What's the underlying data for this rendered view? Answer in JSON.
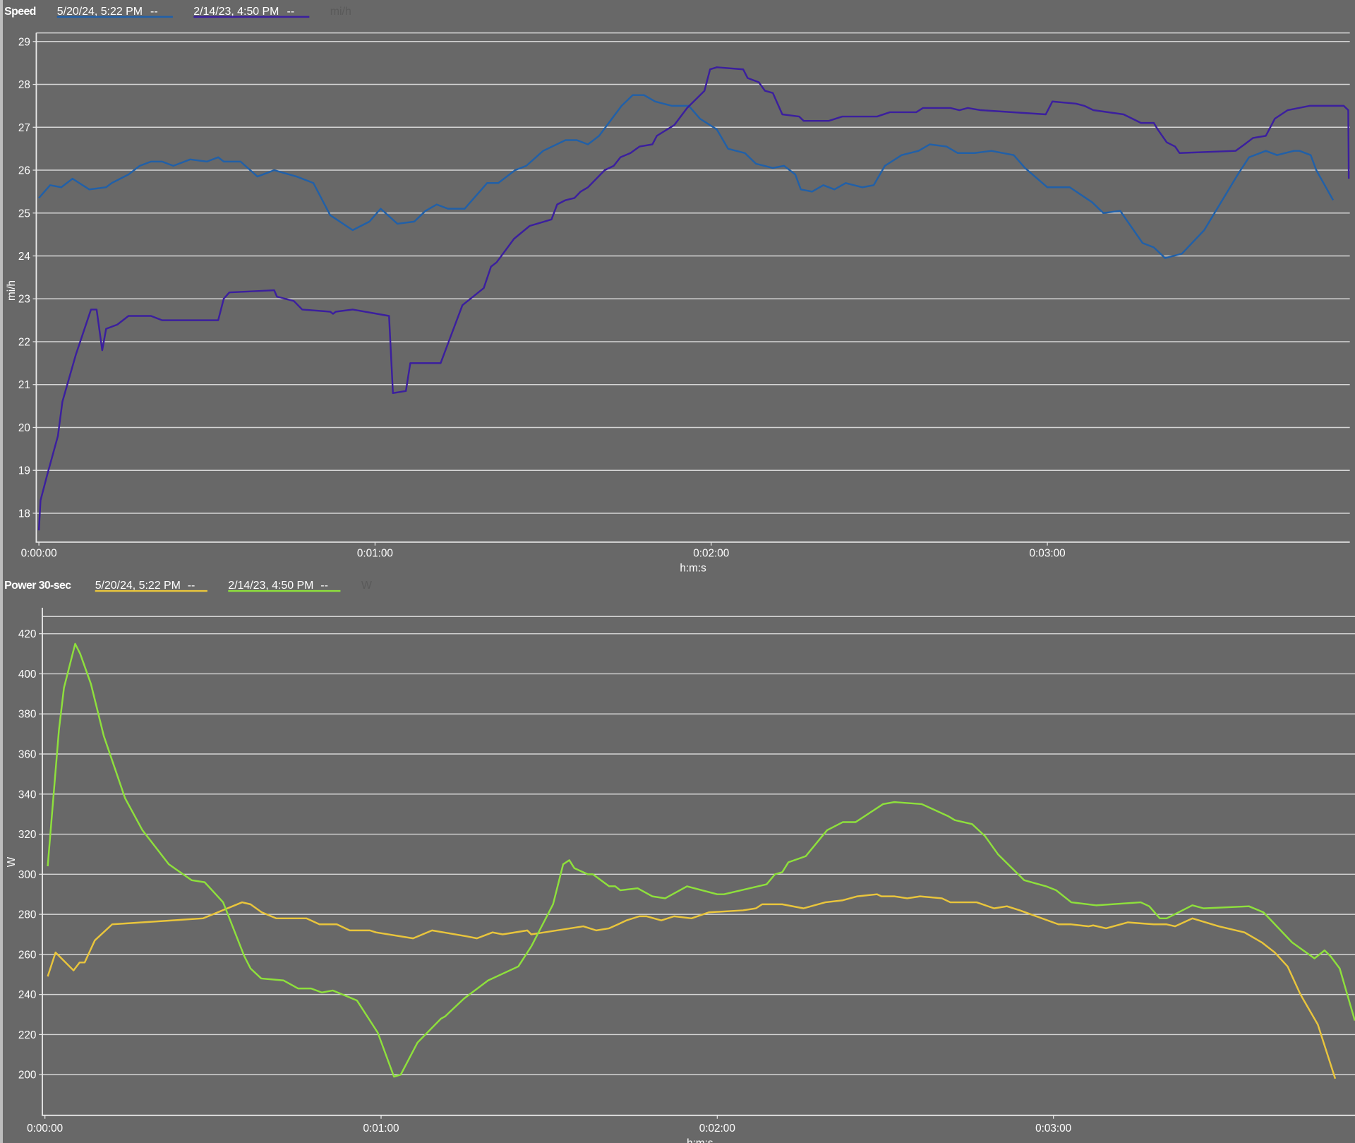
{
  "chart_data": [
    {
      "type": "line",
      "title": "Speed",
      "unit_label": "mi/h",
      "xlabel": "h:m:s",
      "ylabel": "mi/h",
      "xlim_seconds": [
        0,
        234
      ],
      "ylim": [
        17.33,
        29.2
      ],
      "grid": true,
      "legend_position": "top-left",
      "yticks": [
        "18",
        "19",
        "20",
        "21",
        "22",
        "23",
        "24",
        "25",
        "26",
        "27",
        "28",
        "29"
      ],
      "xticks": [
        {
          "t": 0,
          "label": "0:00:00"
        },
        {
          "t": 60,
          "label": "0:01:00"
        },
        {
          "t": 120,
          "label": "0:02:00"
        },
        {
          "t": 180,
          "label": "0:03:00"
        }
      ],
      "series": [
        {
          "name": "5/20/24, 5:22 PM",
          "legend_value": "--",
          "color": "#2160a8",
          "t": [
            0,
            2,
            4,
            6,
            9,
            12,
            13,
            16,
            18,
            20,
            22,
            24,
            27,
            30,
            32,
            33,
            36,
            39,
            42,
            46,
            49,
            52,
            56,
            59,
            61,
            64,
            67,
            69,
            71,
            73,
            76,
            77,
            80,
            82,
            85,
            87,
            90,
            94,
            96,
            98,
            100,
            104,
            106,
            108,
            110,
            113,
            116,
            118,
            121,
            123,
            126,
            128,
            131,
            133,
            135,
            136,
            138,
            140,
            142,
            144,
            147,
            149,
            151,
            154,
            157,
            159,
            162,
            164,
            167,
            170,
            174,
            176,
            180,
            184,
            188,
            190,
            193,
            197,
            199,
            201,
            204,
            208,
            214,
            216,
            219,
            221,
            224,
            225,
            227,
            228,
            231
          ],
          "y": [
            25.35,
            25.65,
            25.6,
            25.8,
            25.55,
            25.6,
            25.7,
            25.9,
            26.1,
            26.2,
            26.2,
            26.1,
            26.25,
            26.2,
            26.3,
            26.2,
            26.2,
            25.85,
            26.0,
            25.85,
            25.7,
            24.95,
            24.6,
            24.8,
            25.1,
            24.75,
            24.8,
            25.05,
            25.2,
            25.1,
            25.1,
            25.25,
            25.7,
            25.7,
            26.0,
            26.1,
            26.45,
            26.7,
            26.7,
            26.6,
            26.8,
            27.5,
            27.75,
            27.75,
            27.6,
            27.5,
            27.5,
            27.2,
            26.95,
            26.5,
            26.4,
            26.15,
            26.05,
            26.1,
            25.9,
            25.55,
            25.5,
            25.65,
            25.55,
            25.7,
            25.6,
            25.65,
            26.1,
            26.35,
            26.45,
            26.6,
            26.55,
            26.4,
            26.4,
            26.45,
            26.35,
            26.05,
            25.6,
            25.6,
            25.25,
            25.0,
            25.05,
            24.3,
            24.2,
            23.95,
            24.05,
            24.6,
            25.9,
            26.3,
            26.45,
            26.35,
            26.45,
            26.45,
            26.35,
            26.0,
            25.3
          ]
        },
        {
          "name": "2/14/23, 4:50 PM",
          "legend_value": "--",
          "color": "#3b1f9e",
          "t": [
            0,
            0.3,
            1.5,
            3.4,
            4.2,
            6.6,
            9.3,
            10.3,
            11.3,
            12,
            14,
            16,
            20,
            22,
            32,
            33,
            34,
            42,
            42.5,
            45.5,
            47,
            52,
            52.5,
            53,
            56,
            62.5,
            63.2,
            65.5,
            66.3,
            71.7,
            75.6,
            79.4,
            80.7,
            81.7,
            84.8,
            87.6,
            91.5,
            92.5,
            94,
            95.6,
            96.7,
            98,
            101,
            102.6,
            103.8,
            105.6,
            107.2,
            109.5,
            110.3,
            113.4,
            115.7,
            118.8,
            119.8,
            121,
            125.7,
            126.5,
            128.5,
            129.6,
            131,
            132.7,
            135.7,
            136.5,
            141,
            143.4,
            149.6,
            151.9,
            156.6,
            157.8,
            162.7,
            164.3,
            165.8,
            168.1,
            179.7,
            180.9,
            185.1,
            186.6,
            188.2,
            193.6,
            196.7,
            199,
            199.7,
            201.3,
            202.8,
            203.6,
            213.6,
            215.2,
            216.7,
            219,
            220.6,
            222.9,
            226.8,
            232.9,
            233.7,
            233.8
          ],
          "y": [
            17.6,
            18.3,
            18.9,
            19.8,
            20.6,
            21.7,
            22.75,
            22.75,
            21.8,
            22.3,
            22.4,
            22.6,
            22.6,
            22.5,
            22.5,
            23.0,
            23.15,
            23.2,
            23.05,
            22.95,
            22.75,
            22.7,
            22.65,
            22.7,
            22.75,
            22.6,
            20.8,
            20.85,
            21.5,
            21.5,
            22.85,
            23.25,
            23.75,
            23.85,
            24.4,
            24.7,
            24.85,
            25.2,
            25.3,
            25.35,
            25.5,
            25.6,
            26.0,
            26.1,
            26.3,
            26.4,
            26.55,
            26.6,
            26.8,
            27.05,
            27.45,
            27.85,
            28.35,
            28.4,
            28.35,
            28.15,
            28.05,
            27.85,
            27.8,
            27.3,
            27.25,
            27.15,
            27.15,
            27.25,
            27.25,
            27.35,
            27.35,
            27.45,
            27.45,
            27.4,
            27.45,
            27.4,
            27.3,
            27.6,
            27.55,
            27.5,
            27.4,
            27.3,
            27.1,
            27.1,
            26.95,
            26.65,
            26.55,
            26.4,
            26.45,
            26.6,
            26.75,
            26.8,
            27.2,
            27.4,
            27.5,
            27.5,
            27.4,
            25.8
          ]
        }
      ]
    },
    {
      "type": "line",
      "title": "Power 30-sec",
      "unit_label": "W",
      "xlabel": "h:m:s",
      "ylabel": "W",
      "xlim_seconds": [
        0,
        233.8
      ],
      "ylim": [
        180,
        428.6
      ],
      "grid": true,
      "legend_position": "top-left",
      "yticks": [
        "200",
        "220",
        "240",
        "260",
        "280",
        "300",
        "320",
        "340",
        "360",
        "380",
        "400",
        "420"
      ],
      "xticks": [
        {
          "t": 0,
          "label": "0:00:00"
        },
        {
          "t": 60,
          "label": "0:01:00"
        },
        {
          "t": 120,
          "label": "0:02:00"
        },
        {
          "t": 180,
          "label": "0:03:00"
        }
      ],
      "series": [
        {
          "name": "5/20/24, 5:22 PM",
          "legend_value": "--",
          "color": "#e9c53c",
          "t": [
            0.5,
            1.9,
            5.1,
            6.2,
            7.1,
            8.9,
            12.0,
            28.2,
            35.2,
            36.7,
            38.7,
            41.3,
            46.7,
            49.0,
            52.1,
            54.4,
            58.0,
            59.1,
            65.7,
            69.1,
            75.3,
            77.1,
            79.9,
            81.7,
            86.1,
            86.8,
            96.1,
            98.4,
            100.7,
            102.3,
            103.8,
            106.1,
            107.4,
            110.0,
            112.3,
            115.4,
            118.5,
            124.6,
            126.9,
            128.0,
            131.6,
            135.4,
            139.3,
            142.4,
            145.0,
            148.5,
            149.3,
            151.6,
            153.9,
            156.2,
            160.1,
            161.6,
            166.3,
            169.4,
            171.7,
            174.0,
            180.9,
            183.2,
            186.3,
            187.1,
            189.4,
            193.3,
            197.9,
            200.2,
            201.7,
            204.8,
            209.5,
            214.1,
            217.2,
            219.5,
            221.8,
            224.1,
            227.2,
            230.3
          ],
          "y": [
            249,
            261,
            252,
            256,
            256,
            267,
            275,
            278,
            286,
            285,
            281,
            278,
            278,
            275,
            275,
            272,
            272,
            271,
            268,
            272,
            269,
            268,
            271,
            270,
            272,
            270,
            274,
            272,
            273,
            275,
            277,
            279,
            279,
            277,
            279,
            278,
            281,
            282,
            283,
            285,
            285,
            283,
            286,
            287,
            289,
            290,
            289,
            289,
            288,
            289,
            288,
            286,
            286,
            283,
            284,
            282,
            275,
            275,
            274,
            274.5,
            273,
            276,
            275,
            275,
            274,
            278,
            274,
            271,
            266,
            261,
            254,
            240,
            225,
            198
          ]
        },
        {
          "name": "2/14/23, 4:50 PM",
          "legend_value": "--",
          "color": "#8ee03c",
          "t": [
            0.5,
            2.5,
            3.4,
            5.4,
            6.3,
            8.2,
            10.5,
            14.3,
            17.4,
            22.1,
            26.2,
            28.5,
            30.5,
            31.8,
            35.6,
            36.7,
            38.6,
            42.6,
            45.2,
            47.5,
            49.4,
            51.4,
            55.7,
            59.4,
            62.3,
            63.5,
            66.5,
            70.7,
            71.4,
            74.8,
            79.1,
            84.5,
            86.8,
            90.7,
            92.5,
            93.6,
            94.5,
            96.9,
            97.8,
            100.7,
            101.8,
            102.7,
            105.8,
            108.4,
            110.7,
            114.6,
            120.0,
            121.2,
            128.8,
            130.3,
            131.6,
            132.7,
            135.8,
            139.6,
            142.4,
            144.7,
            149.6,
            151.6,
            156.5,
            161.2,
            162.4,
            165.5,
            167.8,
            170.1,
            174.8,
            178.7,
            180.5,
            183.2,
            187.6,
            195.6,
            197.1,
            199.0,
            200.2,
            204.8,
            206.8,
            214.9,
            217.5,
            222.6,
            226.6,
            228.4,
            229.5,
            231.1,
            233.8
          ],
          "y": [
            304,
            372,
            393,
            415,
            410,
            395,
            369,
            338,
            322,
            305,
            297,
            296,
            290,
            286,
            259,
            253,
            248,
            247,
            243,
            243,
            241,
            242,
            237,
            221,
            199,
            200,
            216,
            228,
            229,
            238,
            247,
            254,
            264,
            285,
            305,
            307,
            303,
            300,
            300,
            294,
            294,
            292,
            293,
            289,
            288,
            294,
            290,
            290,
            295,
            300,
            301,
            306,
            309,
            322,
            326,
            326,
            335,
            336,
            335,
            329,
            327,
            325,
            319,
            310,
            297,
            294,
            292,
            286,
            284.5,
            286,
            284,
            278,
            278,
            284.5,
            283,
            284,
            281,
            266,
            258,
            262,
            259,
            253,
            227
          ]
        }
      ]
    }
  ]
}
